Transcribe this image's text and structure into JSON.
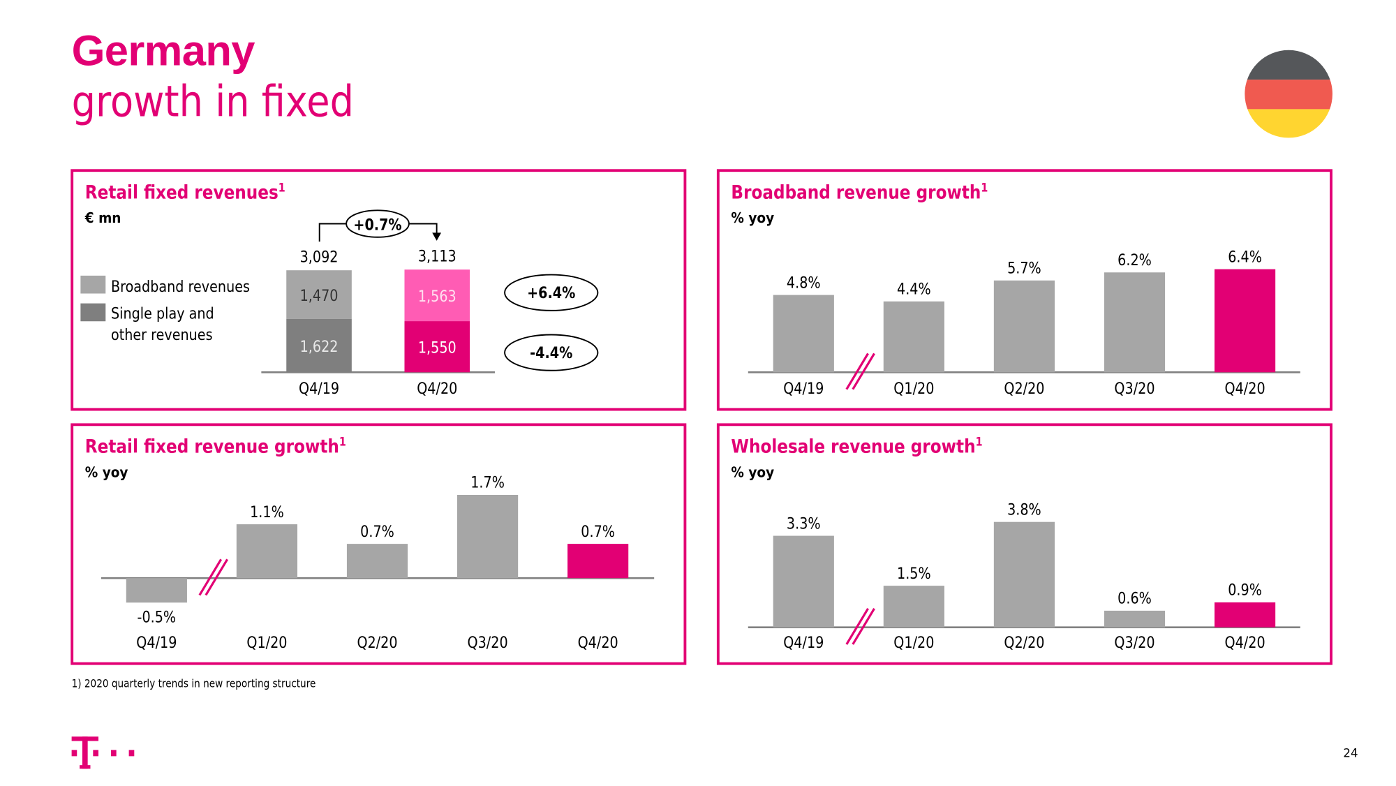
{
  "header": {
    "title": "Germany",
    "subtitle": "growth in fixed"
  },
  "flag": {
    "colors": [
      "#55575a",
      "#f05a50",
      "#ffd530"
    ],
    "icon": "germany-flag-icon"
  },
  "colors": {
    "accent": "#e20074",
    "accent_light": "#ff5cb4",
    "gray": "#a6a6a6",
    "dark_gray": "#7f7f7f"
  },
  "footnote": "1) 2020 quarterly trends in new reporting structure",
  "page_number": "24",
  "logo": {
    "text": "T",
    "icon": "telekom-logo-icon"
  },
  "chart_data": [
    {
      "type": "bar",
      "stacked": true,
      "title": "Retail fixed revenues",
      "title_sup": "1",
      "unit": "€ mn",
      "categories": [
        "Q4/19",
        "Q4/20"
      ],
      "series": [
        {
          "name": "Single play and other revenues",
          "values": [
            1622,
            1550
          ],
          "labels": [
            "1,622",
            "1,550"
          ]
        },
        {
          "name": "Broadband revenues",
          "values": [
            1470,
            1563
          ],
          "labels": [
            "1,470",
            "1,563"
          ]
        }
      ],
      "totals": [
        "3,092",
        "3,113"
      ],
      "legend": [
        {
          "label": "Broadband revenues",
          "color": "#a6a6a6"
        },
        {
          "label_line1": "Single play and",
          "label_line2": "other revenues",
          "color": "#7f7f7f"
        }
      ],
      "annotations": {
        "total_change": "+0.7%",
        "broadband_change": "+6.4%",
        "other_change": "-4.4%"
      },
      "legend_position": "left"
    },
    {
      "type": "bar",
      "title": "Broadband revenue growth",
      "title_sup": "1",
      "unit": "% yoy",
      "categories": [
        "Q4/19",
        "Q1/20",
        "Q2/20",
        "Q3/20",
        "Q4/20"
      ],
      "values": [
        4.8,
        4.4,
        5.7,
        6.2,
        6.4
      ],
      "labels": [
        "4.8%",
        "4.4%",
        "5.7%",
        "6.2%",
        "6.4%"
      ],
      "highlight": "Q4/20",
      "axis_break_after": "Q4/19"
    },
    {
      "type": "bar",
      "title": "Retail fixed revenue growth",
      "title_sup": "1",
      "unit": "% yoy",
      "categories": [
        "Q4/19",
        "Q1/20",
        "Q2/20",
        "Q3/20",
        "Q4/20"
      ],
      "values": [
        -0.5,
        1.1,
        0.7,
        1.7,
        0.7
      ],
      "labels": [
        "-0.5%",
        "1.1%",
        "0.7%",
        "1.7%",
        "0.7%"
      ],
      "highlight": "Q4/20",
      "axis_break_after": "Q4/19"
    },
    {
      "type": "bar",
      "title": "Wholesale revenue growth",
      "title_sup": "1",
      "unit": "% yoy",
      "categories": [
        "Q4/19",
        "Q1/20",
        "Q2/20",
        "Q3/20",
        "Q4/20"
      ],
      "values": [
        3.3,
        1.5,
        3.8,
        0.6,
        0.9
      ],
      "labels": [
        "3.3%",
        "1.5%",
        "3.8%",
        "0.6%",
        "0.9%"
      ],
      "highlight": "Q4/20",
      "axis_break_after": "Q4/19"
    }
  ]
}
